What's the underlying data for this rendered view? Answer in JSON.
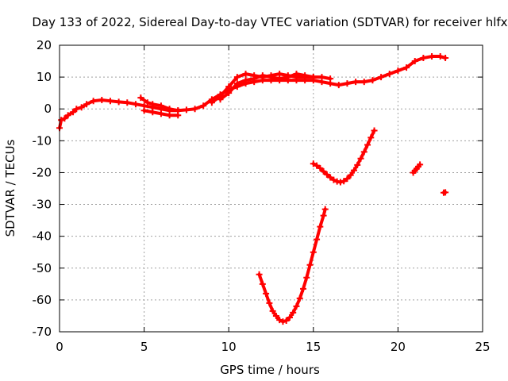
{
  "chart_data": {
    "type": "scatter",
    "title": "Day 133 of 2022, Sidereal Day-to-day VTEC variation (SDTVAR) for receiver hlfx",
    "xlabel": "GPS time / hours",
    "ylabel": "SDTVAR / TECUs",
    "xlim": [
      0,
      25
    ],
    "ylim": [
      -70,
      20
    ],
    "x_ticks": [
      0,
      5,
      10,
      15,
      20,
      25
    ],
    "y_ticks": [
      -70,
      -60,
      -50,
      -40,
      -30,
      -20,
      -10,
      0,
      10,
      20
    ],
    "grid": true,
    "legend": "none",
    "color": "#ff0000",
    "series": [
      {
        "values": [
          {
            "x": 0.0,
            "y": -6
          },
          {
            "x": 0.1,
            "y": -3.5
          },
          {
            "x": 0.3,
            "y": -3
          },
          {
            "x": 0.5,
            "y": -2
          },
          {
            "x": 0.8,
            "y": -1
          },
          {
            "x": 1.0,
            "y": 0
          },
          {
            "x": 1.3,
            "y": 0.5
          },
          {
            "x": 1.6,
            "y": 1.5
          },
          {
            "x": 2.0,
            "y": 2.5
          },
          {
            "x": 2.5,
            "y": 2.8
          },
          {
            "x": 3.0,
            "y": 2.5
          },
          {
            "x": 3.5,
            "y": 2.2
          },
          {
            "x": 4.0,
            "y": 2
          },
          {
            "x": 4.5,
            "y": 1.5
          },
          {
            "x": 5.0,
            "y": 1
          },
          {
            "x": 5.5,
            "y": 0.5
          },
          {
            "x": 6.0,
            "y": 0
          },
          {
            "x": 6.5,
            "y": -0.5
          },
          {
            "x": 7.0,
            "y": -0.5
          },
          {
            "x": 7.5,
            "y": -0.3
          },
          {
            "x": 8.0,
            "y": 0
          },
          {
            "x": 8.5,
            "y": 1
          },
          {
            "x": 9.0,
            "y": 3
          },
          {
            "x": 9.5,
            "y": 4.5
          },
          {
            "x": 10.0,
            "y": 6
          },
          {
            "x": 10.5,
            "y": 7
          },
          {
            "x": 11.0,
            "y": 8
          },
          {
            "x": 11.5,
            "y": 8.5
          },
          {
            "x": 12.0,
            "y": 9
          },
          {
            "x": 12.5,
            "y": 9
          },
          {
            "x": 13.0,
            "y": 9
          },
          {
            "x": 13.5,
            "y": 9
          },
          {
            "x": 14.0,
            "y": 9
          },
          {
            "x": 14.5,
            "y": 9
          },
          {
            "x": 15.0,
            "y": 9
          },
          {
            "x": 15.5,
            "y": 8.5
          },
          {
            "x": 16.0,
            "y": 8
          },
          {
            "x": 16.5,
            "y": 7.5
          },
          {
            "x": 17.0,
            "y": 8
          },
          {
            "x": 17.5,
            "y": 8.5
          },
          {
            "x": 18.0,
            "y": 8.5
          },
          {
            "x": 18.5,
            "y": 9
          },
          {
            "x": 19.0,
            "y": 10
          },
          {
            "x": 19.5,
            "y": 11
          },
          {
            "x": 20.0,
            "y": 12
          },
          {
            "x": 20.5,
            "y": 13
          },
          {
            "x": 21.0,
            "y": 15
          },
          {
            "x": 21.5,
            "y": 16
          },
          {
            "x": 22.0,
            "y": 16.5
          },
          {
            "x": 22.5,
            "y": 16.5
          },
          {
            "x": 22.8,
            "y": 16
          }
        ]
      },
      {
        "values": [
          {
            "x": 4.8,
            "y": 3.5
          },
          {
            "x": 5.2,
            "y": 2
          },
          {
            "x": 5.5,
            "y": 1.5
          },
          {
            "x": 6.0,
            "y": 1
          },
          {
            "x": 6.5,
            "y": 0
          },
          {
            "x": 7.0,
            "y": -0.5
          }
        ]
      },
      {
        "values": [
          {
            "x": 5.0,
            "y": -0.5
          },
          {
            "x": 5.5,
            "y": -1
          },
          {
            "x": 6.0,
            "y": -1.5
          },
          {
            "x": 6.5,
            "y": -2
          },
          {
            "x": 7.0,
            "y": -2
          }
        ]
      },
      {
        "values": [
          {
            "x": 9.0,
            "y": 2
          },
          {
            "x": 9.5,
            "y": 4
          },
          {
            "x": 10.0,
            "y": 7
          },
          {
            "x": 10.5,
            "y": 10
          },
          {
            "x": 11.0,
            "y": 11
          },
          {
            "x": 11.5,
            "y": 10.5
          },
          {
            "x": 12.0,
            "y": 10
          },
          {
            "x": 12.5,
            "y": 10.5
          },
          {
            "x": 13.0,
            "y": 11
          },
          {
            "x": 13.5,
            "y": 10.5
          },
          {
            "x": 14.0,
            "y": 10
          },
          {
            "x": 14.5,
            "y": 10
          },
          {
            "x": 15.0,
            "y": 10
          },
          {
            "x": 15.5,
            "y": 10
          },
          {
            "x": 16.0,
            "y": 9.5
          }
        ]
      },
      {
        "values": [
          {
            "x": 9.5,
            "y": 3
          },
          {
            "x": 10.0,
            "y": 5
          },
          {
            "x": 10.5,
            "y": 8
          },
          {
            "x": 11.0,
            "y": 9
          },
          {
            "x": 11.5,
            "y": 9.5
          },
          {
            "x": 12.0,
            "y": 10.5
          },
          {
            "x": 12.5,
            "y": 10
          },
          {
            "x": 13.0,
            "y": 9.5
          },
          {
            "x": 13.5,
            "y": 10
          },
          {
            "x": 14.0,
            "y": 11
          },
          {
            "x": 14.5,
            "y": 10.5
          },
          {
            "x": 15.0,
            "y": 10
          }
        ]
      },
      {
        "values": [
          {
            "x": 11.8,
            "y": -52
          },
          {
            "x": 12.0,
            "y": -55
          },
          {
            "x": 12.2,
            "y": -58
          },
          {
            "x": 12.4,
            "y": -61
          },
          {
            "x": 12.6,
            "y": -63.5
          },
          {
            "x": 12.8,
            "y": -65
          },
          {
            "x": 13.0,
            "y": -66.3
          },
          {
            "x": 13.2,
            "y": -66.8
          },
          {
            "x": 13.4,
            "y": -66.5
          },
          {
            "x": 13.6,
            "y": -65.5
          },
          {
            "x": 13.8,
            "y": -64
          },
          {
            "x": 14.0,
            "y": -62
          },
          {
            "x": 14.2,
            "y": -59.5
          },
          {
            "x": 14.4,
            "y": -56.5
          },
          {
            "x": 14.6,
            "y": -53
          },
          {
            "x": 14.8,
            "y": -49
          },
          {
            "x": 15.0,
            "y": -45
          },
          {
            "x": 15.2,
            "y": -41
          },
          {
            "x": 15.4,
            "y": -37
          },
          {
            "x": 15.6,
            "y": -33.5
          },
          {
            "x": 15.7,
            "y": -31.5
          }
        ]
      },
      {
        "values": [
          {
            "x": 15.0,
            "y": -17.2
          },
          {
            "x": 15.2,
            "y": -17.8
          },
          {
            "x": 15.4,
            "y": -18.6
          },
          {
            "x": 15.6,
            "y": -19.6
          },
          {
            "x": 15.8,
            "y": -20.6
          },
          {
            "x": 16.0,
            "y": -21.5
          },
          {
            "x": 16.2,
            "y": -22.3
          },
          {
            "x": 16.4,
            "y": -22.8
          },
          {
            "x": 16.6,
            "y": -23.0
          },
          {
            "x": 16.8,
            "y": -22.7
          },
          {
            "x": 17.0,
            "y": -21.9
          },
          {
            "x": 17.2,
            "y": -20.8
          },
          {
            "x": 17.4,
            "y": -19.3
          },
          {
            "x": 17.6,
            "y": -17.6
          },
          {
            "x": 17.8,
            "y": -15.6
          },
          {
            "x": 18.0,
            "y": -13.5
          },
          {
            "x": 18.2,
            "y": -11.3
          },
          {
            "x": 18.4,
            "y": -9.0
          },
          {
            "x": 18.6,
            "y": -6.8
          }
        ]
      },
      {
        "values": [
          {
            "x": 20.9,
            "y": -20
          },
          {
            "x": 21.0,
            "y": -19.4
          },
          {
            "x": 21.1,
            "y": -18.8
          },
          {
            "x": 21.2,
            "y": -18.1
          },
          {
            "x": 21.3,
            "y": -17.5
          }
        ]
      },
      {
        "values": [
          {
            "x": 22.7,
            "y": -26.3
          },
          {
            "x": 22.8,
            "y": -26.2
          }
        ]
      }
    ]
  }
}
